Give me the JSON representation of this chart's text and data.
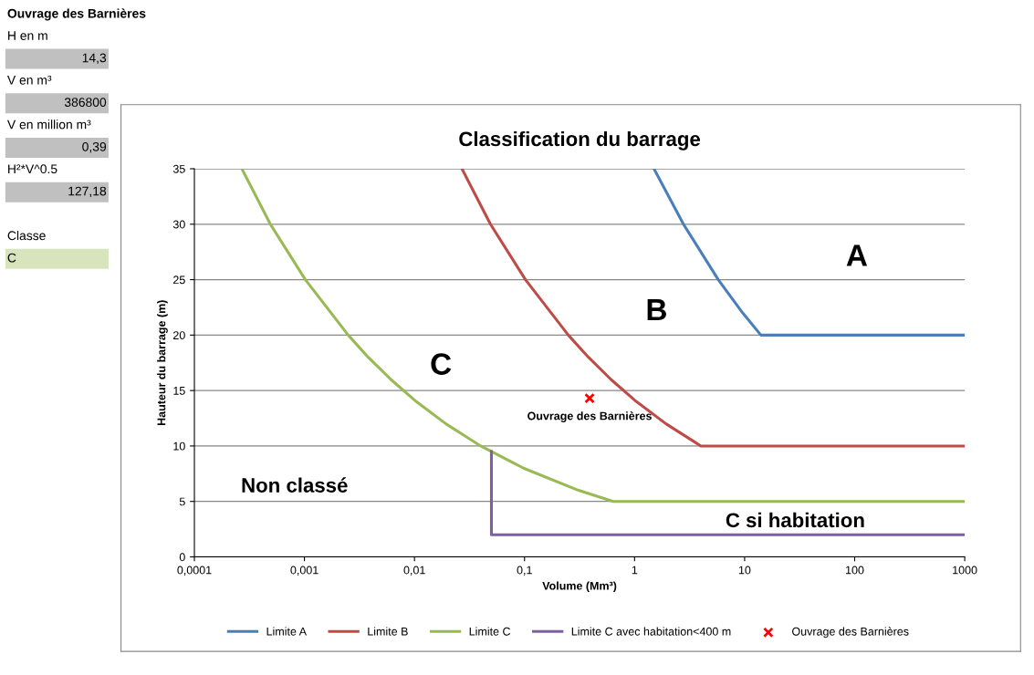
{
  "chart_data": [
    {
      "type": "other",
      "title": "Ouvrage des Barnières",
      "annotations": [
        "H en m",
        "14,3",
        "V en m³",
        "386800",
        "V en million m³",
        "0,39",
        "H²*V^0.5",
        "127,18",
        "Classe",
        "C"
      ]
    },
    {
      "type": "line",
      "title": "Classification du barrage",
      "xlabel": "Volume (Mm³)",
      "ylabel": "Hauteur du barrage (m)",
      "log": "x",
      "xlim": [
        0.0001,
        1000
      ],
      "xticks": [
        {
          "value": 0.0001,
          "label": "0,0001"
        },
        {
          "value": 0.001,
          "label": "0,001"
        },
        {
          "value": 0.01,
          "label": "0,01"
        },
        {
          "value": 0.1,
          "label": "0,1"
        },
        {
          "value": 1,
          "label": "1"
        },
        {
          "value": 10,
          "label": "10"
        },
        {
          "value": 100,
          "label": "100"
        },
        {
          "value": 1000,
          "label": "1000"
        }
      ],
      "ylim": [
        0,
        35
      ],
      "yticks": [
        0,
        5,
        10,
        15,
        20,
        25,
        30,
        35
      ],
      "grid": "y",
      "legend": "bottom",
      "marker": "none",
      "line_style": "solid",
      "series": [
        {
          "name": "Limite A",
          "color": "#4a7ebb",
          "x": [
            1.5,
            2.78,
            5.76,
            9.6,
            14.06,
            1000
          ],
          "values": [
            35,
            30,
            25,
            22,
            20,
            20
          ]
        },
        {
          "name": "Limite B",
          "color": "#be4b48",
          "x": [
            0.027,
            0.049,
            0.102,
            0.25,
            0.381,
            0.61,
            1.04,
            1.93,
            4,
            1000
          ],
          "values": [
            35,
            30,
            25,
            20,
            18,
            16,
            14,
            12,
            10,
            10
          ]
        },
        {
          "name": "Limite C",
          "color": "#98b954",
          "x": [
            0.00027,
            0.00049,
            0.00102,
            0.0025,
            0.0038,
            0.0061,
            0.0104,
            0.0193,
            0.04,
            0.098,
            0.31,
            0.64,
            1000
          ],
          "values": [
            35,
            30,
            25,
            20,
            18,
            16,
            14,
            12,
            10,
            8,
            6,
            5,
            5
          ]
        },
        {
          "name": "Limite C avec habitation<400 m",
          "color": "#7d60a0",
          "x": [
            0.05,
            0.05,
            1000
          ],
          "values": [
            9.5,
            2,
            2
          ]
        },
        {
          "name": "Ouvrage des Barnières",
          "type": "scatter",
          "marker": "cross",
          "color": "#ff0000",
          "x": [
            0.39
          ],
          "values": [
            14.3
          ]
        }
      ],
      "annotations": [
        {
          "text": "Ouvrage des Barnières",
          "x": 0.39,
          "y": 14.3
        },
        "A",
        "B",
        "C",
        "Non classé",
        "C si habitation"
      ]
    }
  ]
}
